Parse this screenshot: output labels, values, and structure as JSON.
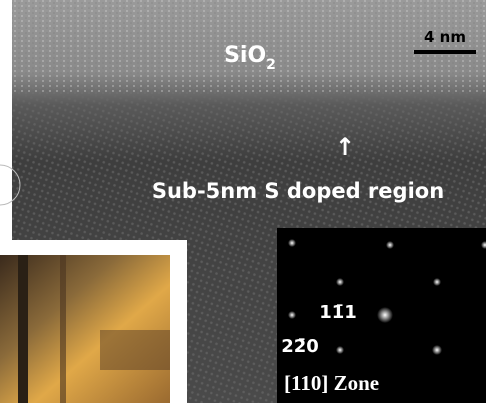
{
  "image": {
    "material": {
      "base": "SiO",
      "subscript": "2"
    },
    "scale_bar": "4 nm",
    "region_label": "Sub-5nm S doped region",
    "arrow": "↑",
    "diffraction": {
      "spot_a": "11̄1",
      "spot_b": "22̄0",
      "zone": "[110] Zone"
    }
  }
}
